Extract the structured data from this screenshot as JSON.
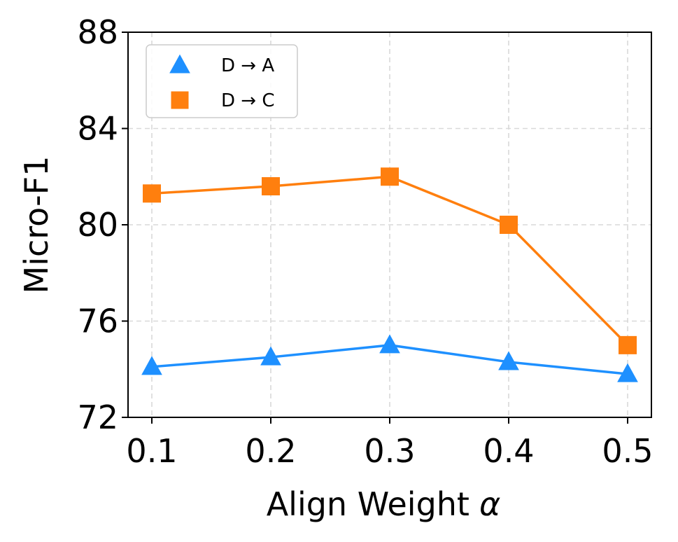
{
  "chart_data": {
    "type": "line",
    "x": [
      0.1,
      0.2,
      0.3,
      0.4,
      0.5
    ],
    "x_tick_labels": [
      "0.1",
      "0.2",
      "0.3",
      "0.4",
      "0.5"
    ],
    "y_ticks": [
      72,
      76,
      80,
      84,
      88
    ],
    "y_tick_labels": [
      "72",
      "76",
      "80",
      "84",
      "88"
    ],
    "xlim": [
      0.08,
      0.52
    ],
    "ylim": [
      72,
      88
    ],
    "xlabel": "Align Weight",
    "xlabel_symbol": "α",
    "ylabel": "Micro-F1",
    "title": "",
    "grid": true,
    "legend_position": "upper left",
    "series": [
      {
        "name": "D → A",
        "marker": "triangle",
        "color": "#1E90FF",
        "values": [
          74.1,
          74.5,
          75.0,
          74.3,
          73.8
        ]
      },
      {
        "name": "D → C",
        "marker": "square",
        "color": "#FF7F0E",
        "values": [
          81.3,
          81.6,
          82.0,
          80.0,
          75.0
        ]
      }
    ]
  }
}
